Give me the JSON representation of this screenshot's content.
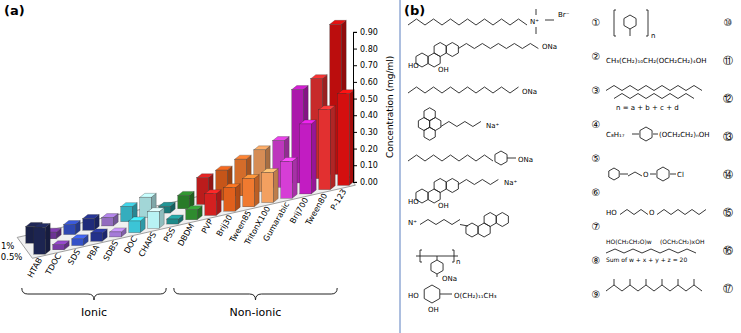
{
  "chart_data": {
    "type": "bar",
    "title": "(a)",
    "y_label": "Concentration (mg/ml)",
    "categories": [
      "HTAB",
      "TDOC",
      "SDS",
      "PBA",
      "SDBS",
      "DOC",
      "CHAPS",
      "PSS",
      "DBDM",
      "PVP",
      "Brij30",
      "Tween85",
      "TritonX100",
      "Gumarabic",
      "Brij700",
      "Tween80",
      "P-123"
    ],
    "series": [
      {
        "name": "0.5%",
        "values": [
          0.16,
          0.03,
          0.04,
          0.05,
          0.03,
          0.07,
          0.1,
          0.03,
          0.06,
          0.13,
          0.14,
          0.17,
          0.18,
          0.22,
          0.42,
          0.48,
          0.55
        ]
      },
      {
        "name": "1%",
        "values": [
          0.1,
          0.04,
          0.06,
          0.07,
          0.05,
          0.09,
          0.12,
          0.04,
          0.08,
          0.16,
          0.18,
          0.22,
          0.25,
          0.28,
          0.56,
          0.6,
          0.9
        ]
      }
    ],
    "colors": [
      "#1c2450",
      "#7a3aa6",
      "#3552c8",
      "#24318a",
      "#a57ad8",
      "#3cc4d6",
      "#b8f2f4",
      "#1f8a8a",
      "#2e8b2e",
      "#d42020",
      "#e0601c",
      "#f07a30",
      "#f3a060",
      "#d63ed6",
      "#c21cc2",
      "#e23030",
      "#d40f0f"
    ],
    "ylim": [
      0,
      0.9
    ],
    "yticks": [
      {
        "value": 0,
        "label": "0.00"
      },
      {
        "value": 0.1,
        "label": "0.10"
      },
      {
        "value": 0.2,
        "label": "0.20"
      },
      {
        "value": 0.3,
        "label": "0.30"
      },
      {
        "value": 0.4,
        "label": "0.40"
      },
      {
        "value": 0.5,
        "label": "0.50"
      },
      {
        "value": 0.6,
        "label": "0.60"
      },
      {
        "value": 0.7,
        "label": "0.70"
      },
      {
        "value": 0.8,
        "label": "0.80"
      },
      {
        "value": 0.9,
        "label": "0.90"
      }
    ],
    "grid": false,
    "annotations": [
      {
        "text": "Ionic",
        "first": "HTAB",
        "last": "PSS"
      },
      {
        "text": "Non-ionic",
        "first": "DBDM",
        "last": "P-123"
      }
    ]
  },
  "structures": {
    "label": "(b)",
    "compounds": [
      {
        "number": "①",
        "texts": [
          "N⁺",
          "Br⁻"
        ]
      },
      {
        "number": "②",
        "texts": [
          "HO",
          "OH",
          "ONa"
        ]
      },
      {
        "number": "③",
        "texts": [
          "ONa"
        ]
      },
      {
        "number": "④",
        "texts": [
          "Na⁺"
        ]
      },
      {
        "number": "⑤",
        "texts": [
          "ONa"
        ]
      },
      {
        "number": "⑥",
        "texts": [
          "HO",
          "OH",
          "Na⁺"
        ]
      },
      {
        "number": "⑦",
        "texts": [
          "N⁺"
        ]
      },
      {
        "number": "⑧",
        "texts": [
          "n",
          "ONa"
        ]
      },
      {
        "number": "⑨",
        "texts": [
          "HO",
          "OH",
          "O(CH₂)₁₁CH₃"
        ]
      },
      {
        "number": "⑩",
        "texts": [
          "n"
        ]
      },
      {
        "number": "⑪",
        "texts": [
          "CH₃(CH₂)₁₀CH₂(OCH₂CH₂)₄OH"
        ]
      },
      {
        "number": "⑫",
        "texts": [
          "n = a + b + c + d"
        ]
      },
      {
        "number": "⑬",
        "texts": [
          "C₈H₁₇",
          "(OCH₂CH₂)ₙOH"
        ]
      },
      {
        "number": "⑭",
        "texts": [
          "O",
          "Cl"
        ]
      },
      {
        "number": "⑮",
        "texts": [
          "HO",
          "O"
        ]
      },
      {
        "number": "⑯",
        "texts": [
          "HO(CH₂CH₂O)w",
          "(OCH₂CH₂)xOH",
          "Sum of w + x + y + z = 20"
        ]
      },
      {
        "number": "⑰"
      }
    ]
  }
}
